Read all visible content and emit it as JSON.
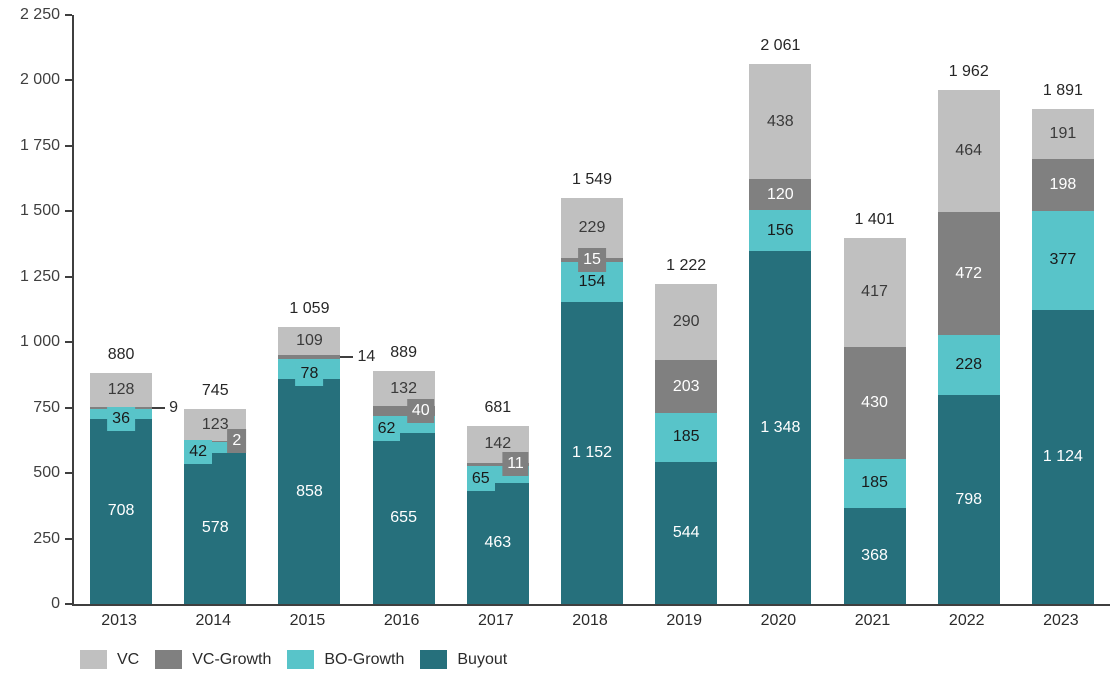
{
  "chart_data": {
    "type": "bar",
    "stacked": true,
    "title": "",
    "xlabel": "",
    "ylabel": "",
    "grid": false,
    "axis_color": "#3f3f3f",
    "text_color": "#2b2b2b",
    "ylim": [
      0,
      2250
    ],
    "ytick_step": 250,
    "yticks": [
      {
        "value": 0,
        "label": "0"
      },
      {
        "value": 250,
        "label": "250"
      },
      {
        "value": 500,
        "label": "500"
      },
      {
        "value": 750,
        "label": "750"
      },
      {
        "value": 1000,
        "label": "1 000"
      },
      {
        "value": 1250,
        "label": "1 250"
      },
      {
        "value": 1500,
        "label": "1 500"
      },
      {
        "value": 1750,
        "label": "1 750"
      },
      {
        "value": 2000,
        "label": "2 000"
      },
      {
        "value": 2250,
        "label": "2 250"
      }
    ],
    "categories": [
      "2013",
      "2014",
      "2015",
      "2016",
      "2017",
      "2018",
      "2019",
      "2020",
      "2021",
      "2022",
      "2023"
    ],
    "series": [
      {
        "name": "Buyout",
        "color": "#26707c",
        "label_color": "#ffffff",
        "box_dy": 0,
        "values": [
          708,
          578,
          858,
          655,
          463,
          1152,
          544,
          1348,
          368,
          798,
          1124
        ],
        "labels": [
          "708",
          "578",
          "858",
          "655",
          "463",
          "1 152",
          "544",
          "1 348",
          "368",
          "798",
          "1 124"
        ],
        "label_modes": [
          "inside",
          "inside",
          "inside",
          "inside",
          "inside",
          "inside",
          "inside",
          "inside",
          "inside",
          "inside",
          "inside"
        ]
      },
      {
        "name": "BO-Growth",
        "color": "#58c4c9",
        "label_color": "#1a1a1a",
        "box_dy": 5,
        "values": [
          36,
          42,
          78,
          62,
          65,
          154,
          185,
          156,
          185,
          228,
          377
        ],
        "labels": [
          "36",
          "42",
          "78",
          "62",
          "65",
          "154",
          "185",
          "156",
          "185",
          "228",
          "377"
        ],
        "label_modes": [
          "box-center",
          "box-left",
          "box-center",
          "box-left",
          "box-left",
          "inside",
          "inside",
          "inside",
          "inside",
          "inside",
          "inside"
        ]
      },
      {
        "name": "VC-Growth",
        "color": "#808080",
        "label_color": "#ffffff",
        "box_dy": 0,
        "values": [
          9,
          2,
          14,
          40,
          11,
          15,
          203,
          120,
          430,
          472,
          198
        ],
        "labels": [
          "9",
          "2",
          "14",
          "40",
          "11",
          "15",
          "203",
          "120",
          "430",
          "472",
          "198"
        ],
        "label_modes": [
          "callout",
          "box-right",
          "callout",
          "box-right",
          "box-right",
          "box-center",
          "inside",
          "inside",
          "inside",
          "inside",
          "inside"
        ]
      },
      {
        "name": "VC",
        "color": "#c0c0c0",
        "label_color": "#3a3a3a",
        "box_dy": 0,
        "values": [
          128,
          123,
          109,
          132,
          142,
          229,
          290,
          438,
          417,
          464,
          191
        ],
        "labels": [
          "128",
          "123",
          "109",
          "132",
          "142",
          "229",
          "290",
          "438",
          "417",
          "464",
          "191"
        ],
        "label_modes": [
          "inside",
          "inside",
          "inside",
          "inside",
          "inside",
          "inside",
          "inside",
          "inside",
          "inside",
          "inside",
          "inside"
        ]
      }
    ],
    "totals": [
      "880",
      "745",
      "1 059",
      "889",
      "681",
      "1 549",
      "1 222",
      "2 061",
      "1 401",
      "1 962",
      "1 891"
    ],
    "legend": {
      "position": "bottom-left",
      "items": [
        {
          "label": "VC",
          "color": "#c0c0c0"
        },
        {
          "label": "VC-Growth",
          "color": "#808080"
        },
        {
          "label": "BO-Growth",
          "color": "#58c4c9"
        },
        {
          "label": "Buyout",
          "color": "#26707c"
        }
      ]
    }
  }
}
